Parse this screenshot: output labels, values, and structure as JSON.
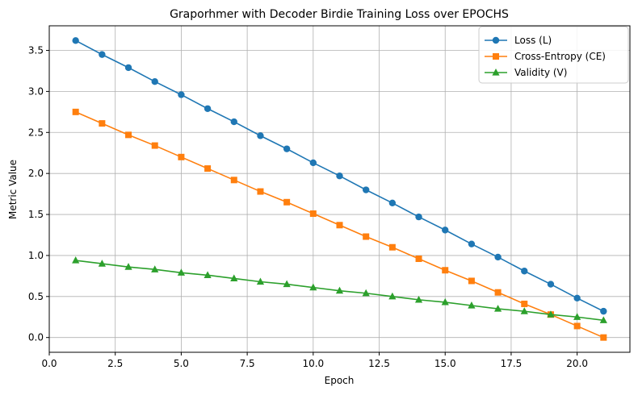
{
  "chart_data": {
    "type": "line",
    "title": "Graporhmer with Decoder Birdie Training Loss over EPOCHS",
    "xlabel": "Epoch",
    "ylabel": "Metric Value",
    "xlim": [
      0,
      22
    ],
    "ylim": [
      -0.18,
      3.8
    ],
    "xticks": [
      0.0,
      2.5,
      5.0,
      7.5,
      10.0,
      12.5,
      15.0,
      17.5,
      20.0
    ],
    "xtick_labels": [
      "0.0",
      "2.5",
      "5.0",
      "7.5",
      "10.0",
      "12.5",
      "15.0",
      "17.5",
      "20.0"
    ],
    "yticks": [
      0.0,
      0.5,
      1.0,
      1.5,
      2.0,
      2.5,
      3.0,
      3.5
    ],
    "ytick_labels": [
      "0.0",
      "0.5",
      "1.0",
      "1.5",
      "2.0",
      "2.5",
      "3.0",
      "3.5"
    ],
    "grid": true,
    "legend_position": "top-right",
    "x": [
      1,
      2,
      3,
      4,
      5,
      6,
      7,
      8,
      9,
      10,
      11,
      12,
      13,
      14,
      15,
      16,
      17,
      18,
      19,
      20,
      21
    ],
    "series": [
      {
        "name": "Loss (L)",
        "color": "#1f77b4",
        "marker": "circle",
        "values": [
          3.62,
          3.45,
          3.29,
          3.12,
          2.96,
          2.79,
          2.63,
          2.46,
          2.3,
          2.13,
          1.97,
          1.8,
          1.64,
          1.47,
          1.31,
          1.14,
          0.98,
          0.81,
          0.65,
          0.48,
          0.32
        ]
      },
      {
        "name": "Cross-Entropy (CE)",
        "color": "#ff7f0e",
        "marker": "square",
        "values": [
          2.75,
          2.61,
          2.47,
          2.34,
          2.2,
          2.06,
          1.92,
          1.78,
          1.65,
          1.51,
          1.37,
          1.23,
          1.1,
          0.96,
          0.82,
          0.69,
          0.55,
          0.41,
          0.28,
          0.14,
          0.0
        ]
      },
      {
        "name": "Validity (V)",
        "color": "#2ca02c",
        "marker": "triangle",
        "values": [
          0.94,
          0.9,
          0.86,
          0.83,
          0.79,
          0.76,
          0.72,
          0.68,
          0.65,
          0.61,
          0.57,
          0.54,
          0.5,
          0.46,
          0.43,
          0.39,
          0.35,
          0.32,
          0.28,
          0.25,
          0.21
        ]
      }
    ]
  }
}
